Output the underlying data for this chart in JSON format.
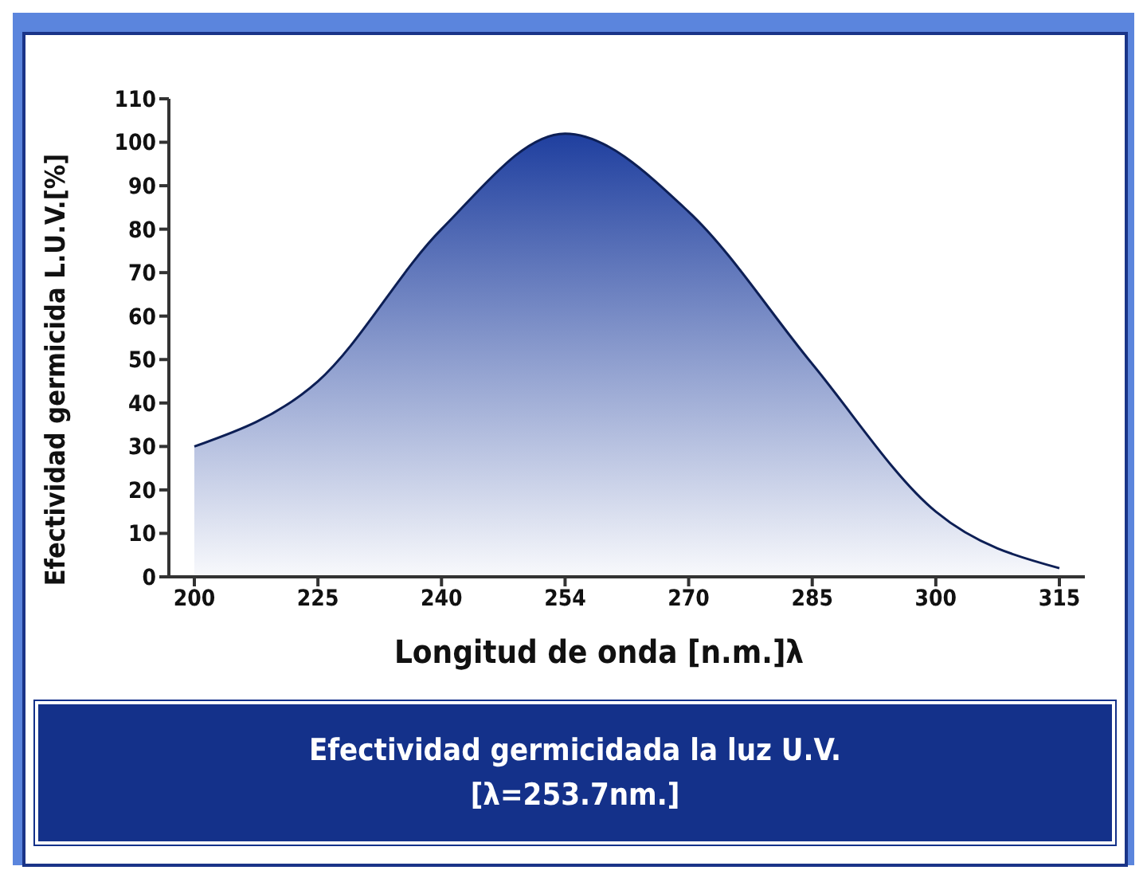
{
  "chart_data": {
    "type": "area",
    "title": "Efectividad germicidada la luz U.V.",
    "subtitle": "[λ=253.7nm.]",
    "xlabel": "Longitud de onda [n.m.]λ",
    "ylabel": "Efectividad germicida L.U.V.[%]",
    "categories": [
      "200",
      "225",
      "240",
      "254",
      "270",
      "285",
      "300",
      "315"
    ],
    "series": [
      {
        "color": "#1f3f9f",
        "values": [
          30,
          45,
          80,
          102,
          84,
          49,
          15,
          2
        ]
      }
    ],
    "ylim": [
      0,
      110
    ],
    "yticks": [
      0,
      10,
      20,
      30,
      40,
      50,
      60,
      70,
      80,
      90,
      100,
      110
    ],
    "grid": false,
    "legend": false
  }
}
